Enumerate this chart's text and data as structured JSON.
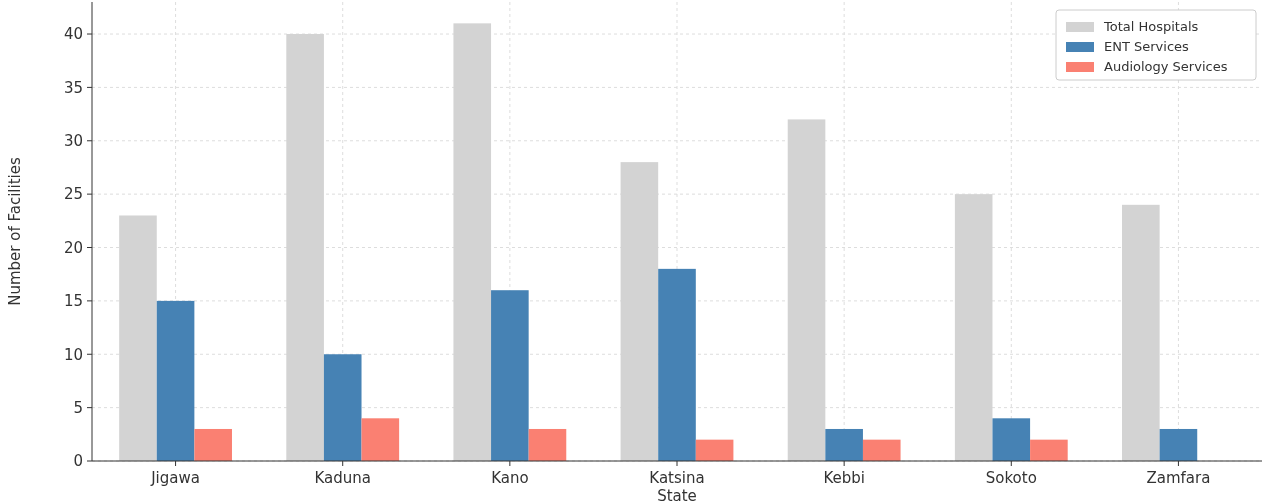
{
  "chart_data": {
    "type": "bar",
    "xlabel": "State",
    "ylabel": "Number of Facilities",
    "categories": [
      "Jigawa",
      "Kaduna",
      "Kano",
      "Katsina",
      "Kebbi",
      "Sokoto",
      "Zamfara"
    ],
    "series": [
      {
        "name": "Total Hospitals",
        "color": "#d3d3d3",
        "values": [
          23,
          40,
          41,
          28,
          32,
          25,
          24
        ]
      },
      {
        "name": "ENT Services",
        "color": "#4682b4",
        "values": [
          15,
          10,
          16,
          18,
          3,
          4,
          3
        ]
      },
      {
        "name": "Audiology Services",
        "color": "#fa8072",
        "values": [
          3,
          4,
          3,
          2,
          2,
          2,
          0
        ]
      }
    ],
    "ylim": [
      0,
      43
    ],
    "yticks": [
      0,
      5,
      10,
      15,
      20,
      25,
      30,
      35,
      40
    ],
    "grid": true,
    "legend": "top right"
  }
}
